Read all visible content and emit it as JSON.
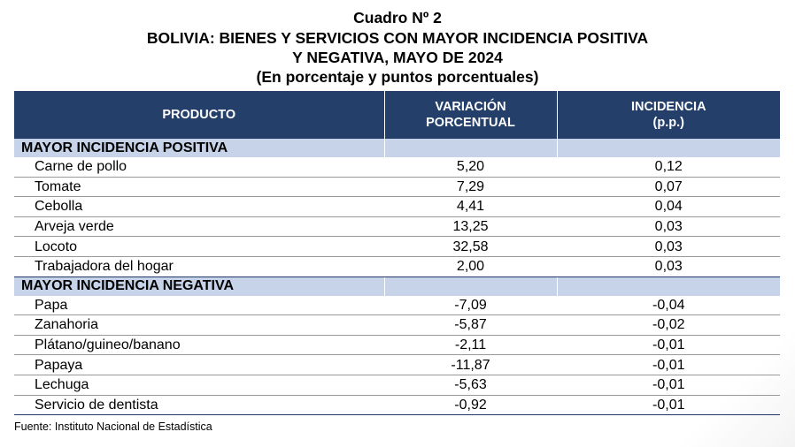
{
  "title": {
    "line1": "Cuadro Nº 2",
    "line2": "BOLIVIA: BIENES Y SERVICIOS CON MAYOR INCIDENCIA POSITIVA",
    "line3": "Y NEGATIVA, MAYO DE 2024",
    "line4": "(En porcentaje y puntos porcentuales)"
  },
  "table": {
    "headers": {
      "product": "PRODUCTO",
      "variation_1": "VARIACIÓN",
      "variation_2": "PORCENTUAL",
      "incidence_1": "INCIDENCIA",
      "incidence_2": "(p.p.)"
    },
    "sections": [
      {
        "label": "MAYOR INCIDENCIA POSITIVA",
        "rows": [
          {
            "product": "Carne de pollo",
            "variation": "5,20",
            "incidence": "0,12"
          },
          {
            "product": "Tomate",
            "variation": "7,29",
            "incidence": "0,07"
          },
          {
            "product": "Cebolla",
            "variation": "4,41",
            "incidence": "0,04"
          },
          {
            "product": "Arveja verde",
            "variation": "13,25",
            "incidence": "0,03"
          },
          {
            "product": "Locoto",
            "variation": "32,58",
            "incidence": "0,03"
          },
          {
            "product": "Trabajadora del hogar",
            "variation": "2,00",
            "incidence": "0,03"
          }
        ]
      },
      {
        "label": "MAYOR INCIDENCIA NEGATIVA",
        "rows": [
          {
            "product": "Papa",
            "variation": "-7,09",
            "incidence": "-0,04"
          },
          {
            "product": "Zanahoria",
            "variation": "-5,87",
            "incidence": "-0,02"
          },
          {
            "product": "Plátano/guineo/banano",
            "variation": "-2,11",
            "incidence": "-0,01"
          },
          {
            "product": "Papaya",
            "variation": "-11,87",
            "incidence": "-0,01"
          },
          {
            "product": "Lechuga",
            "variation": "-5,63",
            "incidence": "-0,01"
          },
          {
            "product": "Servicio de dentista",
            "variation": "-0,92",
            "incidence": "-0,01"
          }
        ]
      }
    ]
  },
  "source": "Fuente: Instituto Nacional de Estadística",
  "colors": {
    "header_bg": "#233f6a",
    "section_bg": "#c6d3e8"
  }
}
